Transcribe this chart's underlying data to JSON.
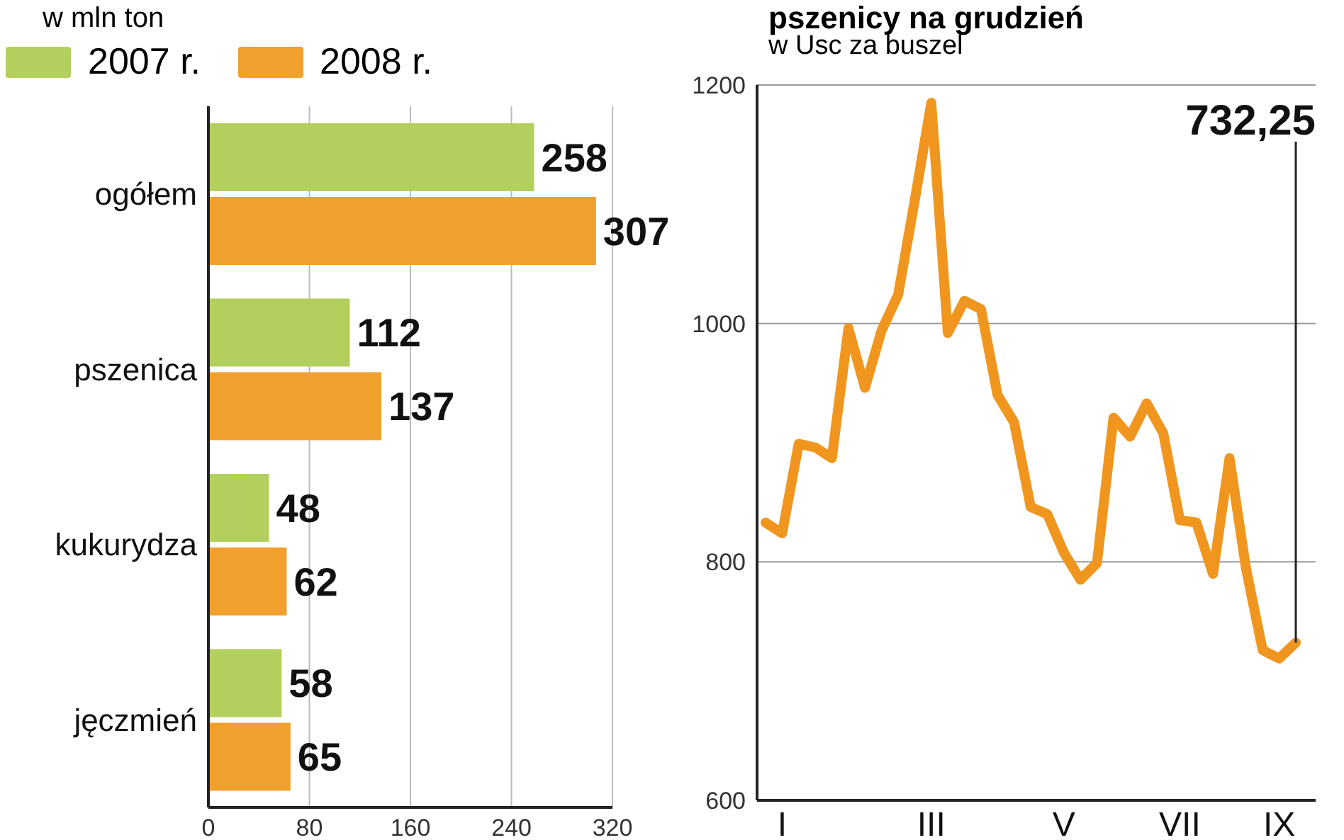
{
  "chart_data": [
    {
      "type": "bar",
      "orientation": "horizontal",
      "subtitle": "w mln ton",
      "categories": [
        "ogółem",
        "pszenica",
        "kukurydza",
        "jęczmień"
      ],
      "series": [
        {
          "name": "2007 r.",
          "color": "#b3cf5e",
          "values": [
            258,
            112,
            48,
            58
          ]
        },
        {
          "name": "2008 r.",
          "color": "#f0a02c",
          "values": [
            307,
            137,
            62,
            65
          ]
        }
      ],
      "xlim": [
        0,
        320
      ],
      "xticks": [
        0,
        80,
        160,
        240,
        320
      ],
      "grid": "x",
      "legend": "top left",
      "data_labels": true
    },
    {
      "type": "line",
      "title": "pszenicy na grudzień",
      "subtitle": "w Usc za buszel",
      "categories": [
        null,
        "I",
        null,
        null,
        null,
        null,
        null,
        null,
        null,
        null,
        "III",
        null,
        null,
        null,
        null,
        null,
        null,
        null,
        "V",
        null,
        null,
        null,
        null,
        null,
        null,
        "VII",
        null,
        null,
        null,
        null,
        null,
        "IX",
        null
      ],
      "series": [
        {
          "color": "#f0961e",
          "values": [
            833,
            824,
            899,
            896,
            887,
            996,
            946,
            994,
            1024,
            1103,
            1185,
            992,
            1019,
            1012,
            940,
            917,
            846,
            840,
            808,
            785,
            799,
            921,
            905,
            933,
            908,
            835,
            833,
            790,
            887,
            794,
            726,
            719,
            732.25
          ]
        }
      ],
      "ylim": [
        600,
        1200
      ],
      "yticks": [
        600,
        800,
        1000,
        1200
      ],
      "grid": "y",
      "marker": "none",
      "line_style": "solid",
      "annotations": [
        "732,25"
      ]
    }
  ]
}
